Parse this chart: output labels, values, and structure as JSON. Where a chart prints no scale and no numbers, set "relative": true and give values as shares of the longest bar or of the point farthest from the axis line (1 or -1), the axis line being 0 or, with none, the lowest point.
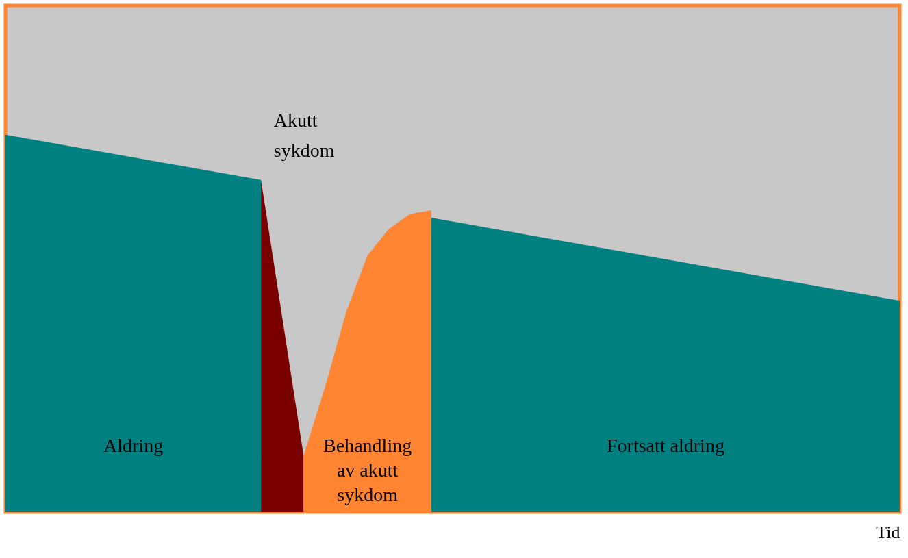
{
  "chart_data": {
    "type": "area",
    "relative": true,
    "xlabel": "Tid",
    "legend": false,
    "categories": [
      null,
      null,
      null,
      null,
      null,
      null,
      null,
      null,
      null,
      null,
      null,
      null,
      null,
      null,
      null,
      null,
      null,
      null,
      null,
      null,
      null,
      null,
      null,
      null,
      null,
      null,
      null,
      null,
      null,
      null,
      null,
      null,
      null,
      null,
      null,
      null,
      null,
      null,
      null,
      null,
      null,
      null,
      null
    ],
    "series": [
      {
        "name": "Aldring",
        "color": "#008080",
        "values": [
          1,
          null,
          null,
          null,
          null,
          null,
          null,
          null,
          null,
          null,
          null,
          null,
          0.88,
          null,
          null,
          null,
          null,
          null,
          null,
          null,
          null,
          null,
          null,
          null,
          null,
          null,
          null,
          null,
          null,
          null,
          null,
          null,
          null,
          null,
          null,
          null,
          null,
          null,
          null,
          null,
          null,
          null,
          null
        ]
      },
      {
        "color": "#7a0000",
        "values": [
          null,
          null,
          null,
          null,
          null,
          null,
          null,
          null,
          null,
          null,
          null,
          null,
          0.88,
          null,
          0.15,
          null,
          null,
          null,
          null,
          null,
          null,
          null,
          null,
          null,
          null,
          null,
          null,
          null,
          null,
          null,
          null,
          null,
          null,
          null,
          null,
          null,
          null,
          null,
          null,
          null,
          null,
          null,
          null
        ]
      },
      {
        "name": "Behandling av akutt sykdom",
        "color": "#ff8533",
        "values": [
          null,
          null,
          null,
          null,
          null,
          null,
          null,
          null,
          null,
          null,
          null,
          null,
          null,
          null,
          0.15,
          0.33,
          0.53,
          0.68,
          0.75,
          0.79,
          0.8,
          null,
          null,
          null,
          null,
          null,
          null,
          null,
          null,
          null,
          null,
          null,
          null,
          null,
          null,
          null,
          null,
          null,
          null,
          null,
          null,
          null,
          null
        ]
      },
      {
        "name": "Fortsatt aldring",
        "color": "#008080",
        "values": [
          null,
          null,
          null,
          null,
          null,
          null,
          null,
          null,
          null,
          null,
          null,
          null,
          null,
          null,
          null,
          null,
          null,
          null,
          null,
          null,
          0.78,
          null,
          null,
          null,
          null,
          null,
          null,
          null,
          null,
          null,
          null,
          null,
          null,
          null,
          null,
          null,
          null,
          null,
          null,
          null,
          null,
          null,
          0.56
        ]
      }
    ],
    "annotations": [
      "Akutt sykdom"
    ]
  }
}
